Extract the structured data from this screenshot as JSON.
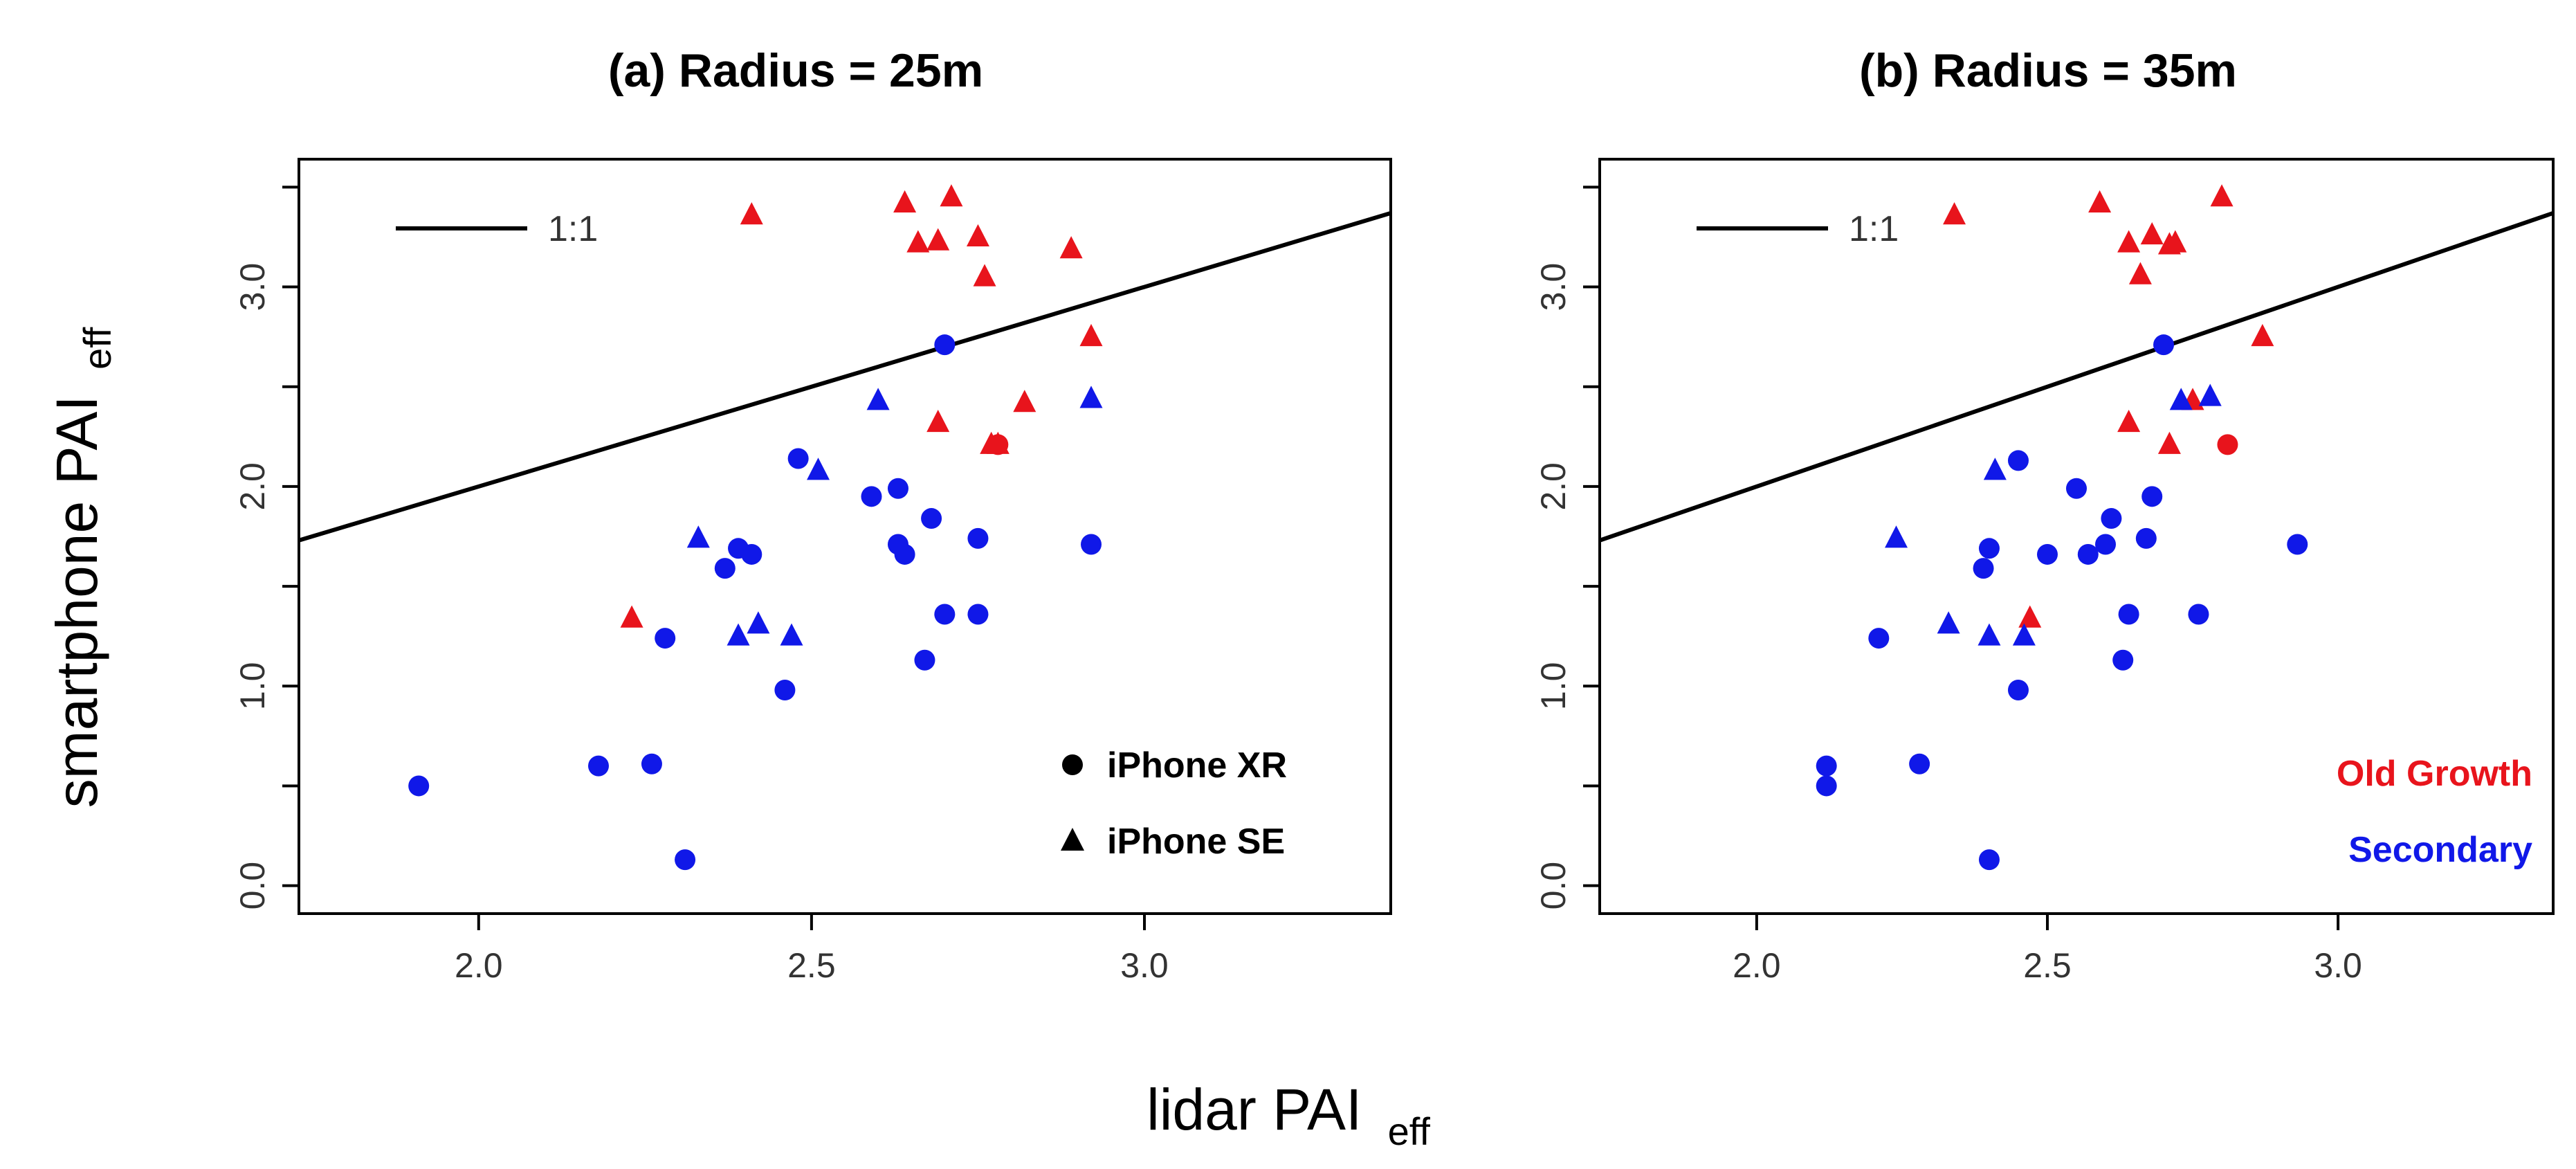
{
  "figure": {
    "ylabel": "smartphone PAI",
    "ylabel_sub": "eff",
    "xlabel": "lidar PAI",
    "xlabel_sub": "eff"
  },
  "chart_data": [
    {
      "type": "scatter",
      "title": "(a) Radius = 25m",
      "xlim": [
        1.73,
        3.37
      ],
      "ylim": [
        0.0,
        3.5
      ],
      "xticks": [
        "2.0",
        "2.5",
        "3.0"
      ],
      "yticks": [
        "0.0",
        "1.0",
        "2.0",
        "3.0"
      ],
      "grid": false,
      "reference_line": {
        "label": "1:1",
        "slope": 1,
        "intercept": 0
      },
      "legend": {
        "placement": "bottom-right",
        "entries": [
          {
            "label": "iPhone XR",
            "marker": "circle"
          },
          {
            "label": "iPhone SE",
            "marker": "triangle"
          }
        ]
      },
      "colors": {
        "Old Growth": "#e8141c",
        "Secondary": "#1018e8"
      },
      "series": [
        {
          "group": "Old Growth",
          "device": "iPhone SE",
          "marker": "triangle",
          "points": [
            [
              2.41,
              3.36
            ],
            [
              2.64,
              3.42
            ],
            [
              2.71,
              3.45
            ],
            [
              2.66,
              3.22
            ],
            [
              2.69,
              3.23
            ],
            [
              2.75,
              3.25
            ],
            [
              2.76,
              3.05
            ],
            [
              2.89,
              3.19
            ],
            [
              2.92,
              2.75
            ],
            [
              2.69,
              2.32
            ],
            [
              2.82,
              2.42
            ],
            [
              2.77,
              2.21
            ],
            [
              2.78,
              2.21
            ],
            [
              2.23,
              1.34
            ]
          ]
        },
        {
          "group": "Secondary",
          "device": "iPhone SE",
          "marker": "triangle",
          "points": [
            [
              2.6,
              2.43
            ],
            [
              2.92,
              2.44
            ],
            [
              2.51,
              2.08
            ],
            [
              2.33,
              1.74
            ],
            [
              2.42,
              1.31
            ],
            [
              2.39,
              1.25
            ],
            [
              2.47,
              1.25
            ]
          ]
        },
        {
          "group": "Secondary",
          "device": "iPhone XR",
          "marker": "circle",
          "points": [
            [
              2.7,
              2.71
            ],
            [
              2.48,
              2.14
            ],
            [
              2.59,
              1.95
            ],
            [
              2.63,
              1.99
            ],
            [
              2.68,
              1.84
            ],
            [
              2.63,
              1.71
            ],
            [
              2.64,
              1.66
            ],
            [
              2.39,
              1.69
            ],
            [
              2.41,
              1.66
            ],
            [
              2.37,
              1.59
            ],
            [
              2.75,
              1.74
            ],
            [
              2.92,
              1.71
            ],
            [
              2.7,
              1.36
            ],
            [
              2.75,
              1.36
            ],
            [
              2.28,
              1.24
            ],
            [
              2.67,
              1.13
            ],
            [
              2.46,
              0.98
            ],
            [
              1.91,
              0.5
            ],
            [
              2.18,
              0.6
            ],
            [
              2.26,
              0.61
            ],
            [
              2.31,
              0.13
            ]
          ]
        },
        {
          "group": "Old Growth",
          "device": "iPhone XR",
          "marker": "circle",
          "points": [
            [
              2.78,
              2.21
            ]
          ]
        }
      ]
    },
    {
      "type": "scatter",
      "title": "(b) Radius = 35m",
      "xlim": [
        1.73,
        3.37
      ],
      "ylim": [
        0.0,
        3.5
      ],
      "xticks": [
        "2.0",
        "2.5",
        "3.0"
      ],
      "yticks": [
        "0.0",
        "1.0",
        "2.0",
        "3.0"
      ],
      "grid": false,
      "reference_line": {
        "label": "1:1",
        "slope": 1,
        "intercept": 0
      },
      "legend": {
        "placement": "bottom-right",
        "entries": [
          {
            "label": "Old Growth",
            "color": "#e8141c"
          },
          {
            "label": "Secondary",
            "color": "#1018e8"
          }
        ]
      },
      "colors": {
        "Old Growth": "#e8141c",
        "Secondary": "#1018e8"
      },
      "series": [
        {
          "group": "Old Growth",
          "device": "iPhone SE",
          "marker": "triangle",
          "points": [
            [
              2.34,
              3.36
            ],
            [
              2.59,
              3.42
            ],
            [
              2.8,
              3.45
            ],
            [
              2.64,
              3.22
            ],
            [
              2.68,
              3.26
            ],
            [
              2.71,
              3.21
            ],
            [
              2.72,
              3.22
            ],
            [
              2.66,
              3.06
            ],
            [
              2.87,
              2.75
            ],
            [
              2.64,
              2.32
            ],
            [
              2.75,
              2.43
            ],
            [
              2.71,
              2.21
            ],
            [
              2.47,
              1.34
            ]
          ]
        },
        {
          "group": "Secondary",
          "device": "iPhone SE",
          "marker": "triangle",
          "points": [
            [
              2.73,
              2.43
            ],
            [
              2.78,
              2.45
            ],
            [
              2.41,
              2.08
            ],
            [
              2.24,
              1.74
            ],
            [
              2.33,
              1.31
            ],
            [
              2.4,
              1.25
            ],
            [
              2.46,
              1.25
            ]
          ]
        },
        {
          "group": "Secondary",
          "device": "iPhone XR",
          "marker": "circle",
          "points": [
            [
              2.7,
              2.71
            ],
            [
              2.45,
              2.13
            ],
            [
              2.55,
              1.99
            ],
            [
              2.68,
              1.95
            ],
            [
              2.61,
              1.84
            ],
            [
              2.6,
              1.71
            ],
            [
              2.57,
              1.66
            ],
            [
              2.67,
              1.74
            ],
            [
              2.4,
              1.69
            ],
            [
              2.5,
              1.66
            ],
            [
              2.39,
              1.59
            ],
            [
              2.93,
              1.71
            ],
            [
              2.64,
              1.36
            ],
            [
              2.76,
              1.36
            ],
            [
              2.21,
              1.24
            ],
            [
              2.63,
              1.13
            ],
            [
              2.45,
              0.98
            ],
            [
              2.12,
              0.6
            ],
            [
              2.12,
              0.5
            ],
            [
              2.28,
              0.61
            ],
            [
              2.4,
              0.13
            ]
          ]
        },
        {
          "group": "Old Growth",
          "device": "iPhone XR",
          "marker": "circle",
          "points": [
            [
              2.81,
              2.21
            ]
          ]
        }
      ]
    }
  ]
}
